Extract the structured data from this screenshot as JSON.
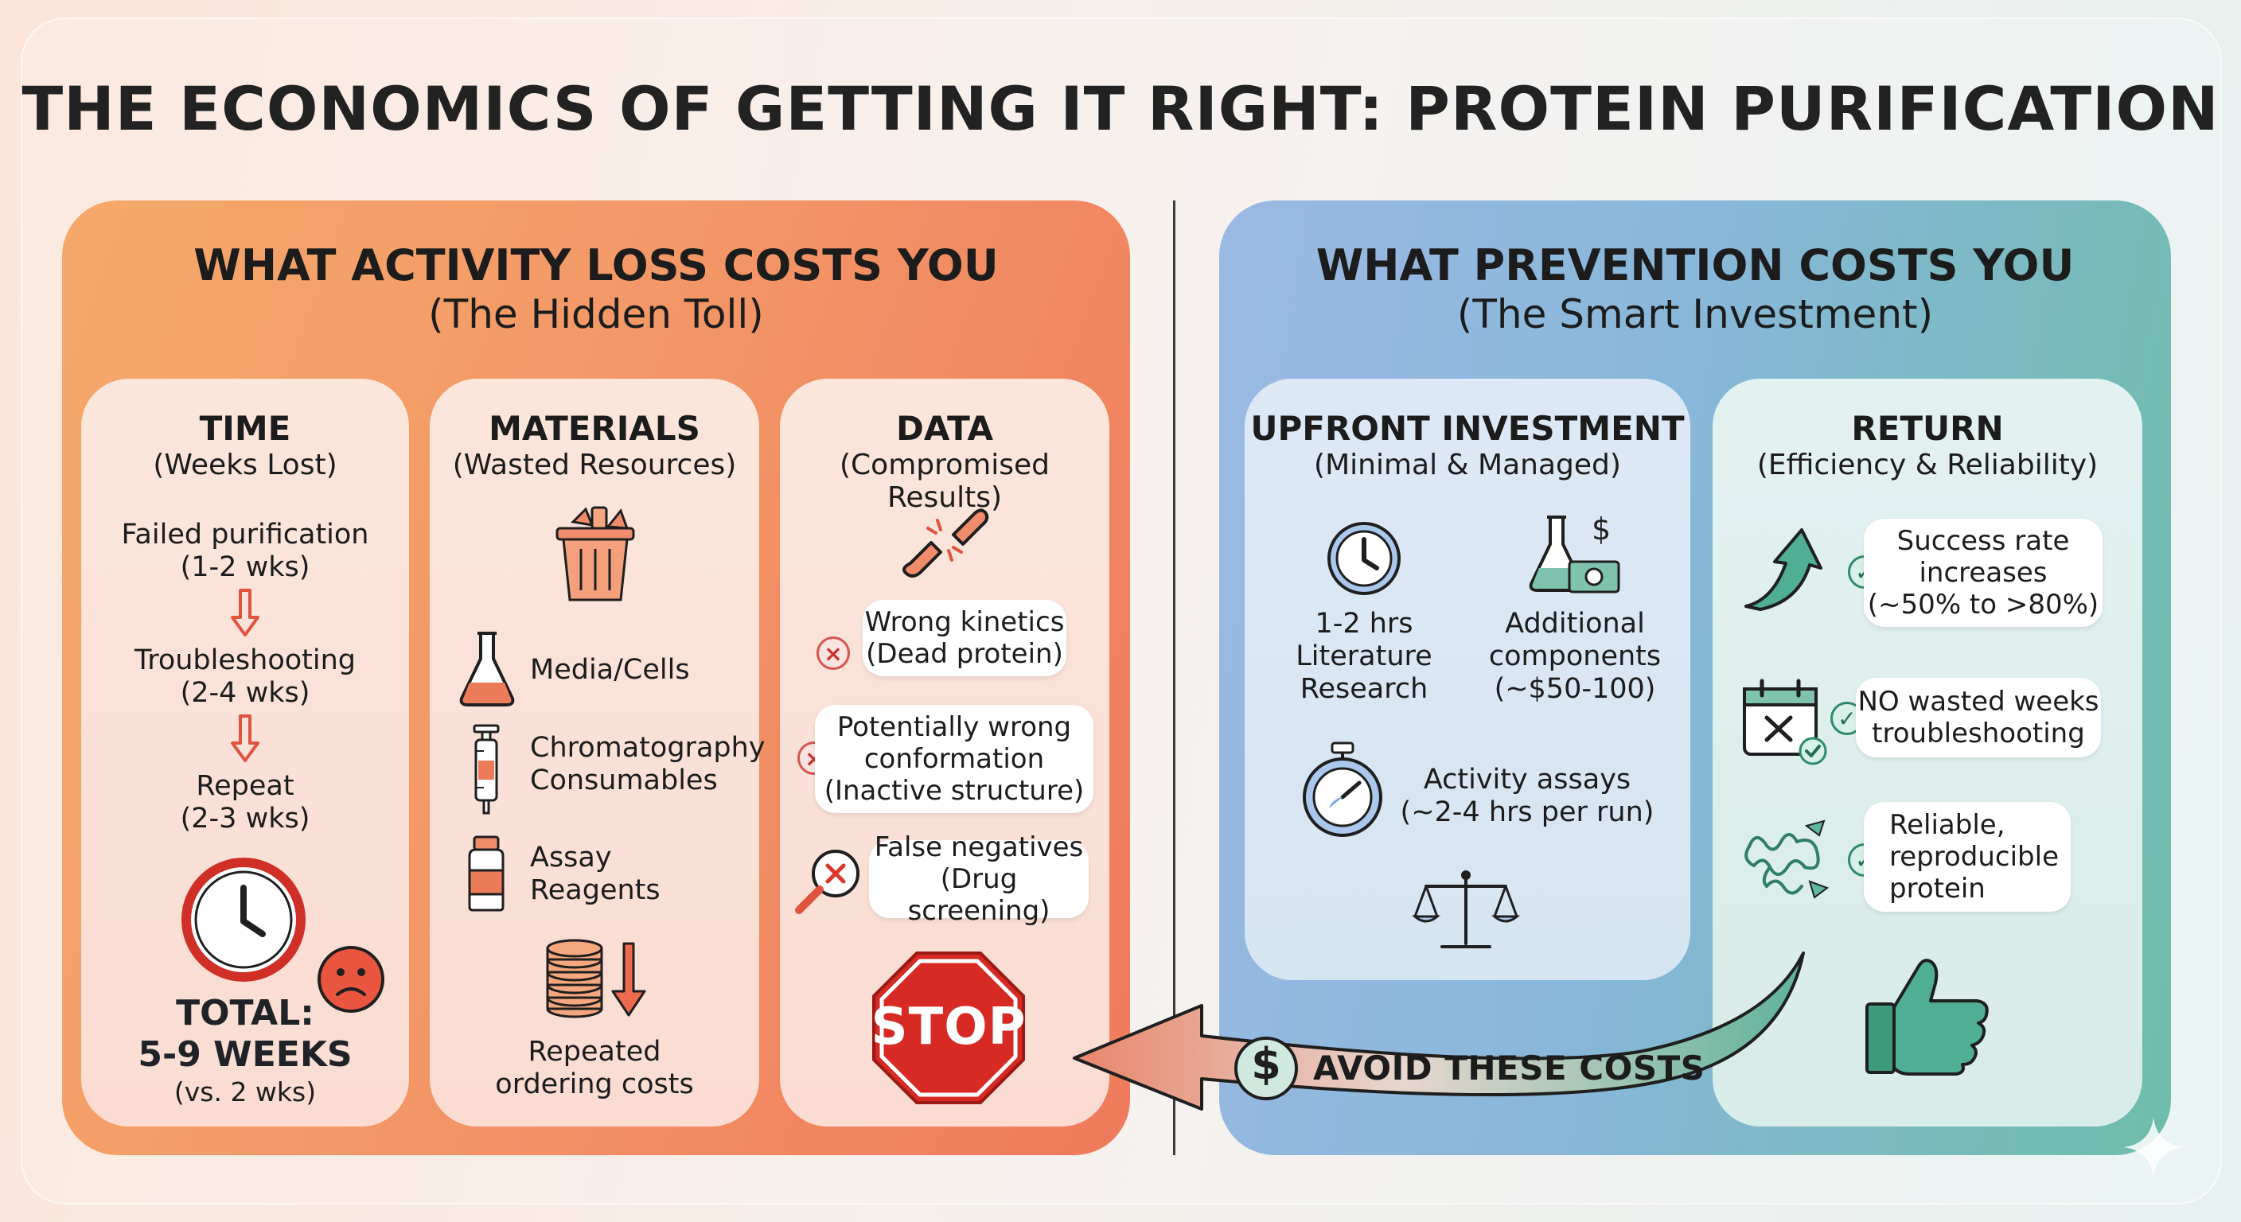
{
  "title": "THE ECONOMICS OF GETTING IT RIGHT: PROTEIN PURIFICATION",
  "left_panel": {
    "title": "WHAT ACTIVITY LOSS COSTS YOU",
    "subtitle": "(The Hidden Toll)",
    "time": {
      "title": "TIME",
      "subtitle": "(Weeks Lost)",
      "steps": [
        {
          "label": "Failed purification",
          "duration": "(1-2 wks)"
        },
        {
          "label": "Troubleshooting",
          "duration": "(2-4 wks)"
        },
        {
          "label": "Repeat",
          "duration": "(2-3 wks)"
        }
      ],
      "total_label": "TOTAL:",
      "total_value": "5-9 WEEKS",
      "comparison": "(vs. 2 wks)"
    },
    "materials": {
      "title": "MATERIALS",
      "subtitle": "(Wasted Resources)",
      "items": [
        {
          "line1": "Media/Cells",
          "line2": ""
        },
        {
          "line1": "Chromatography",
          "line2": "Consumables"
        },
        {
          "line1": "Assay",
          "line2": "Reagents"
        }
      ],
      "footer_line1": "Repeated",
      "footer_line2": "ordering costs"
    },
    "data": {
      "title": "DATA",
      "subtitle": "(Compromised Results)",
      "items": [
        {
          "line1": "Wrong kinetics",
          "line2": "(Dead protein)",
          "line3": ""
        },
        {
          "line1": "Potentially wrong",
          "line2": "conformation",
          "line3": "(Inactive structure)"
        },
        {
          "line1": "False negatives",
          "line2": "(Drug screening)",
          "line3": ""
        }
      ],
      "stop_sign": "STOP"
    }
  },
  "right_panel": {
    "title": "WHAT PREVENTION COSTS YOU",
    "subtitle": "(The Smart Investment)",
    "upfront": {
      "title": "UPFRONT INVESTMENT",
      "subtitle": "(Minimal & Managed)",
      "research": {
        "line1": "1-2 hrs",
        "line2": "Literature",
        "line3": "Research"
      },
      "components": {
        "line1": "Additional",
        "line2": "components",
        "line3": "(~$50-100)"
      },
      "assays": {
        "line1": "Activity assays",
        "line2": "(~2-4 hrs per run)"
      }
    },
    "return": {
      "title": "RETURN",
      "subtitle": "(Efficiency & Reliability)",
      "items": [
        {
          "line1": "Success rate",
          "line2": "increases",
          "line3": "(~50% to >80%)"
        },
        {
          "line1": "NO wasted weeks",
          "line2": "troubleshooting",
          "line3": ""
        },
        {
          "line1": "Reliable,",
          "line2": "reproducible",
          "line3": "protein"
        }
      ]
    }
  },
  "arrow_label": "AVOID THESE COSTS",
  "arrow_symbol": "$",
  "colors": {
    "warm_accent": "#e0533f",
    "cool_accent": "#2f8a6c",
    "icon_outline": "#2b2b2b"
  }
}
